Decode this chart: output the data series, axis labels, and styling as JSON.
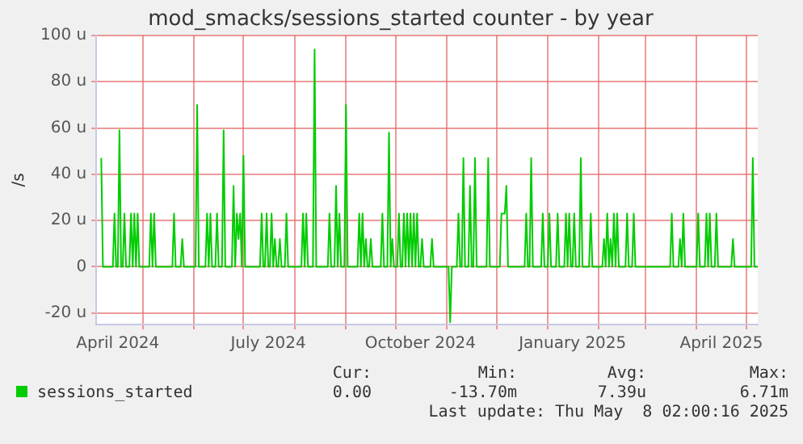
{
  "chart_data": {
    "type": "line",
    "title": "mod_smacks/sessions_started counter - by year",
    "ylabel": "/s",
    "x": [
      "2024-04-06",
      "2024-04-07",
      "2024-04-13",
      "2024-04-14",
      "2024-04-15",
      "2024-04-16",
      "2024-04-17",
      "2024-04-18",
      "2024-04-19",
      "2024-04-20",
      "2024-04-21",
      "2024-04-23",
      "2024-04-24",
      "2024-04-25",
      "2024-04-26",
      "2024-04-27",
      "2024-04-28",
      "2024-04-29",
      "2024-05-05",
      "2024-05-06",
      "2024-05-07",
      "2024-05-08",
      "2024-05-09",
      "2024-05-19",
      "2024-05-20",
      "2024-05-21",
      "2024-05-24",
      "2024-05-25",
      "2024-05-26",
      "2024-06-02",
      "2024-06-03",
      "2024-06-04",
      "2024-06-08",
      "2024-06-09",
      "2024-06-10",
      "2024-06-11",
      "2024-06-12",
      "2024-06-14",
      "2024-06-15",
      "2024-06-16",
      "2024-06-18",
      "2024-06-19",
      "2024-06-20",
      "2024-06-24",
      "2024-06-25",
      "2024-06-26",
      "2024-06-27",
      "2024-06-28",
      "2024-06-29",
      "2024-06-30",
      "2024-07-01",
      "2024-07-02",
      "2024-07-11",
      "2024-07-12",
      "2024-07-13",
      "2024-07-14",
      "2024-07-15",
      "2024-07-16",
      "2024-07-17",
      "2024-07-18",
      "2024-07-19",
      "2024-07-20",
      "2024-07-21",
      "2024-07-22",
      "2024-07-23",
      "2024-07-24",
      "2024-07-26",
      "2024-07-27",
      "2024-07-28",
      "2024-08-05",
      "2024-08-06",
      "2024-08-07",
      "2024-08-08",
      "2024-08-09",
      "2024-08-12",
      "2024-08-13",
      "2024-08-14",
      "2024-08-21",
      "2024-08-22",
      "2024-08-23",
      "2024-08-25",
      "2024-08-26",
      "2024-08-27",
      "2024-08-28",
      "2024-08-29",
      "2024-08-31",
      "2024-09-01",
      "2024-09-02",
      "2024-09-08",
      "2024-09-09",
      "2024-09-10",
      "2024-09-11",
      "2024-09-12",
      "2024-09-13",
      "2024-09-14",
      "2024-09-15",
      "2024-09-16",
      "2024-09-17",
      "2024-09-22",
      "2024-09-23",
      "2024-09-24",
      "2024-09-26",
      "2024-09-27",
      "2024-09-28",
      "2024-09-29",
      "2024-09-30",
      "2024-10-02",
      "2024-10-03",
      "2024-10-04",
      "2024-10-05",
      "2024-10-06",
      "2024-10-07",
      "2024-10-08",
      "2024-10-09",
      "2024-10-10",
      "2024-10-11",
      "2024-10-12",
      "2024-10-13",
      "2024-10-14",
      "2024-10-15",
      "2024-10-16",
      "2024-10-17",
      "2024-10-18",
      "2024-10-22",
      "2024-10-23",
      "2024-10-24",
      "2024-11-02",
      "2024-11-03",
      "2024-11-04",
      "2024-11-07",
      "2024-11-08",
      "2024-11-09",
      "2024-11-10",
      "2024-11-11",
      "2024-11-12",
      "2024-11-14",
      "2024-11-15",
      "2024-11-16",
      "2024-11-17",
      "2024-11-18",
      "2024-11-19",
      "2024-11-25",
      "2024-11-26",
      "2024-11-27",
      "2024-12-03",
      "2024-12-04",
      "2024-12-05",
      "2024-12-06",
      "2024-12-07",
      "2024-12-08",
      "2024-12-18",
      "2024-12-19",
      "2024-12-20",
      "2024-12-21",
      "2024-12-22",
      "2024-12-23",
      "2024-12-28",
      "2024-12-29",
      "2024-12-30",
      "2025-01-01",
      "2025-01-02",
      "2025-01-03",
      "2025-01-06",
      "2025-01-07",
      "2025-01-08",
      "2025-01-11",
      "2025-01-12",
      "2025-01-13",
      "2025-01-14",
      "2025-01-15",
      "2025-01-16",
      "2025-01-17",
      "2025-01-18",
      "2025-01-20",
      "2025-01-21",
      "2025-01-22",
      "2025-01-26",
      "2025-01-27",
      "2025-01-28",
      "2025-02-03",
      "2025-02-04",
      "2025-02-05",
      "2025-02-06",
      "2025-02-07",
      "2025-02-08",
      "2025-02-09",
      "2025-02-10",
      "2025-02-11",
      "2025-02-12",
      "2025-02-13",
      "2025-02-17",
      "2025-02-18",
      "2025-02-19",
      "2025-02-21",
      "2025-02-22",
      "2025-02-23",
      "2025-03-16",
      "2025-03-17",
      "2025-03-18",
      "2025-03-21",
      "2025-03-22",
      "2025-03-23",
      "2025-03-24",
      "2025-03-25",
      "2025-04-01",
      "2025-04-02",
      "2025-04-03",
      "2025-04-06",
      "2025-04-07",
      "2025-04-08",
      "2025-04-09",
      "2025-04-10",
      "2025-04-12",
      "2025-04-13",
      "2025-04-14",
      "2025-04-22",
      "2025-04-23",
      "2025-04-24",
      "2025-05-04",
      "2025-05-05",
      "2025-05-06",
      "2025-05-08"
    ],
    "series": [
      {
        "name": "sessions_started",
        "color": "#00cc00",
        "values": [
          47,
          0,
          0,
          23,
          0,
          0,
          59,
          0,
          0,
          23,
          0,
          0,
          23,
          0,
          23,
          0,
          23,
          0,
          0,
          23,
          0,
          23,
          0,
          0,
          23,
          0,
          0,
          12,
          0,
          0,
          70,
          0,
          0,
          23,
          0,
          23,
          0,
          0,
          23,
          0,
          0,
          59,
          0,
          0,
          35,
          0,
          23,
          12,
          23,
          0,
          48,
          0,
          0,
          23,
          0,
          0,
          23,
          0,
          0,
          23,
          0,
          12,
          0,
          0,
          12,
          0,
          0,
          23,
          0,
          0,
          23,
          0,
          23,
          0,
          0,
          94,
          0,
          0,
          23,
          0,
          0,
          35,
          0,
          23,
          0,
          0,
          70,
          0,
          0,
          23,
          0,
          23,
          0,
          12,
          0,
          0,
          12,
          0,
          0,
          23,
          0,
          0,
          58,
          0,
          12,
          0,
          0,
          23,
          0,
          0,
          23,
          0,
          23,
          0,
          23,
          0,
          23,
          0,
          23,
          0,
          0,
          12,
          0,
          0,
          12,
          0,
          0,
          -24,
          0,
          0,
          23,
          0,
          0,
          47,
          0,
          0,
          35,
          0,
          0,
          47,
          0,
          0,
          47,
          0,
          0,
          23,
          23,
          23,
          35,
          0,
          0,
          23,
          0,
          0,
          47,
          0,
          0,
          23,
          0,
          0,
          23,
          0,
          0,
          23,
          0,
          0,
          23,
          0,
          23,
          0,
          0,
          23,
          0,
          0,
          47,
          0,
          0,
          23,
          0,
          0,
          12,
          0,
          23,
          0,
          12,
          0,
          23,
          0,
          23,
          0,
          0,
          23,
          0,
          0,
          23,
          0,
          0,
          23,
          0,
          0,
          12,
          0,
          23,
          0,
          0,
          23,
          0,
          0,
          23,
          0,
          23,
          0,
          0,
          23,
          0,
          0,
          12,
          0,
          0,
          47,
          0,
          0
        ]
      }
    ],
    "xlim": [
      "2024-04-03",
      "2025-05-08"
    ],
    "xticks": [
      {
        "value": "2024-04-16",
        "label": "April 2024"
      },
      {
        "value": "2024-05-01",
        "label": null
      },
      {
        "value": "2024-06-01",
        "label": null
      },
      {
        "value": "2024-07-01",
        "label": null
      },
      {
        "value": "2024-07-16",
        "label": "July 2024"
      },
      {
        "value": "2024-08-01",
        "label": null
      },
      {
        "value": "2024-09-01",
        "label": null
      },
      {
        "value": "2024-10-01",
        "label": null
      },
      {
        "value": "2024-10-16",
        "label": "October 2024"
      },
      {
        "value": "2024-11-01",
        "label": null
      },
      {
        "value": "2024-12-01",
        "label": null
      },
      {
        "value": "2025-01-01",
        "label": null
      },
      {
        "value": "2025-01-16",
        "label": "January 2025"
      },
      {
        "value": "2025-02-01",
        "label": null
      },
      {
        "value": "2025-03-01",
        "label": null
      },
      {
        "value": "2025-04-01",
        "label": null
      },
      {
        "value": "2025-04-16",
        "label": "April 2025"
      },
      {
        "value": "2025-05-01",
        "label": null
      }
    ],
    "ylim": [
      -25,
      100
    ],
    "yticks": [
      {
        "value": -20,
        "label": "-20 u"
      },
      0,
      {
        "value": 20,
        "label": "20 u"
      },
      {
        "value": 40,
        "label": "40 u"
      },
      {
        "value": 60,
        "label": "60 u"
      },
      {
        "value": 80,
        "label": "80 u"
      },
      {
        "value": 100,
        "label": "100 u"
      }
    ],
    "grid": true,
    "legend": "bottom",
    "marker": "none",
    "line_style": "solid",
    "annotations": [
      "Cur:",
      "Min:",
      "Avg:",
      "Max:",
      "0.00",
      "-13.70m",
      "7.39u",
      "6.71m",
      "Last update: Thu May  8 02:00:16 2025"
    ]
  }
}
